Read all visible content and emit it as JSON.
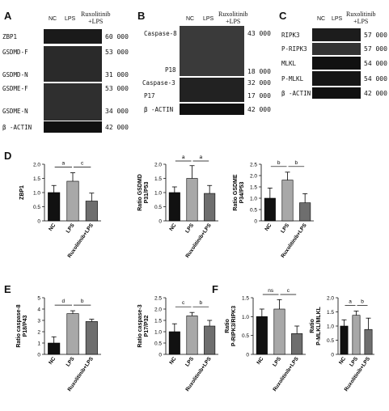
{
  "panels": {
    "A": "A",
    "B": "B",
    "C": "C",
    "D": "D",
    "E": "E",
    "F": "F"
  },
  "lanes": {
    "nc": "NC",
    "lps": "LPS",
    "rux_line1": "Ruxolitinib",
    "rux_line2": "+LPS"
  },
  "blotA": {
    "rows": [
      {
        "label": "ZBP1",
        "mw": "60 000"
      },
      {
        "label": "GSDMD-F",
        "mw": "53 000"
      },
      {
        "label": "GSDMD-N",
        "mw": "31 000"
      },
      {
        "label": "GSDME-F",
        "mw": "53 000"
      },
      {
        "label": "GSDME-N",
        "mw": "34 000"
      },
      {
        "label": "β -ACTIN",
        "mw": "42 000"
      }
    ]
  },
  "blotB": {
    "rows": [
      {
        "label": "Caspase-8",
        "mw": "43 000"
      },
      {
        "label": "P18",
        "mw": "18 000"
      },
      {
        "label": "Caspase-3",
        "mw": "32 000"
      },
      {
        "label": "P17",
        "mw": "17 000"
      },
      {
        "label": "β -ACTIN",
        "mw": "42 000"
      }
    ]
  },
  "blotC": {
    "rows": [
      {
        "label": "RIPK3",
        "mw": "57 000"
      },
      {
        "label": "P-RIPK3",
        "mw": "57 000"
      },
      {
        "label": "MLKL",
        "mw": "54 000"
      },
      {
        "label": "P-MLKL",
        "mw": "54 000"
      },
      {
        "label": "β -ACTIN",
        "mw": "42 000"
      }
    ]
  },
  "chart_data": [
    {
      "type": "bar",
      "ylabel": "ZBP1",
      "categories": [
        "NC",
        "LPS",
        "Ruxolitinib+LPS"
      ],
      "values": [
        1.0,
        1.4,
        0.7
      ],
      "errors": [
        0.25,
        0.3,
        0.28
      ],
      "ylim": [
        0,
        2.0
      ],
      "yticks": [
        "0",
        "0.5",
        "1.0",
        "1.5",
        "2.0"
      ],
      "sig": [
        "a",
        "c"
      ]
    },
    {
      "type": "bar",
      "ylabel": "Ratio GSDMD P31/P53",
      "categories": [
        "NC",
        "LPS",
        "Ruxolitinib+LPS"
      ],
      "values": [
        1.0,
        1.5,
        0.97
      ],
      "errors": [
        0.2,
        0.45,
        0.28
      ],
      "ylim": [
        0,
        2.0
      ],
      "yticks": [
        "0",
        "0.5",
        "1.0",
        "1.5",
        "2.0"
      ],
      "sig": [
        "a",
        "a"
      ]
    },
    {
      "type": "bar",
      "ylabel": "Ratio GSDME P34/P53",
      "categories": [
        "NC",
        "LPS",
        "Ruxolitinib+LPS"
      ],
      "values": [
        1.0,
        1.8,
        0.8
      ],
      "errors": [
        0.45,
        0.35,
        0.4
      ],
      "ylim": [
        0,
        2.5
      ],
      "yticks": [
        "0",
        "0.5",
        "1.0",
        "1.5",
        "2.0",
        "2.5"
      ],
      "sig": [
        "b",
        "b"
      ]
    },
    {
      "type": "bar",
      "ylabel": "Ratio caspase-8 P18/P43",
      "categories": [
        "NC",
        "LPS",
        "Ruxolitinib+LPS"
      ],
      "values": [
        1.0,
        3.6,
        2.9
      ],
      "errors": [
        0.55,
        0.25,
        0.2
      ],
      "ylim": [
        0,
        5
      ],
      "yticks": [
        "0",
        "1",
        "2",
        "3",
        "4",
        "5"
      ],
      "sig": [
        "d",
        "b"
      ]
    },
    {
      "type": "bar",
      "ylabel": "Ratio caspase-3 P17/P32",
      "categories": [
        "NC",
        "LPS",
        "Ruxolitinib+LPS"
      ],
      "values": [
        1.0,
        1.7,
        1.25
      ],
      "errors": [
        0.35,
        0.15,
        0.25
      ],
      "ylim": [
        0,
        2.5
      ],
      "yticks": [
        "0",
        "0.5",
        "1.0",
        "1.5",
        "2.0",
        "2.5"
      ],
      "sig": [
        "c",
        "b"
      ]
    },
    {
      "type": "bar",
      "ylabel": "Ratio P-RIPK3/RIPK3",
      "categories": [
        "NC",
        "LPS",
        "Ruxolitinib+LPS"
      ],
      "values": [
        1.0,
        1.2,
        0.55
      ],
      "errors": [
        0.2,
        0.25,
        0.2
      ],
      "ylim": [
        0,
        1.5
      ],
      "yticks": [
        "0",
        "0.5",
        "1.0",
        "1.5"
      ],
      "sig": [
        "ns",
        "c"
      ]
    },
    {
      "type": "bar",
      "ylabel": "Ratio P-MLKL/MLKL",
      "categories": [
        "NC",
        "LPS",
        "Ruxolitinib+LPS"
      ],
      "values": [
        1.0,
        1.38,
        0.88
      ],
      "errors": [
        0.22,
        0.15,
        0.4
      ],
      "ylim": [
        0,
        2.0
      ],
      "yticks": [
        "0",
        "0.5",
        "1.0",
        "1.5",
        "2.0"
      ],
      "sig": [
        "a",
        "b"
      ]
    }
  ]
}
